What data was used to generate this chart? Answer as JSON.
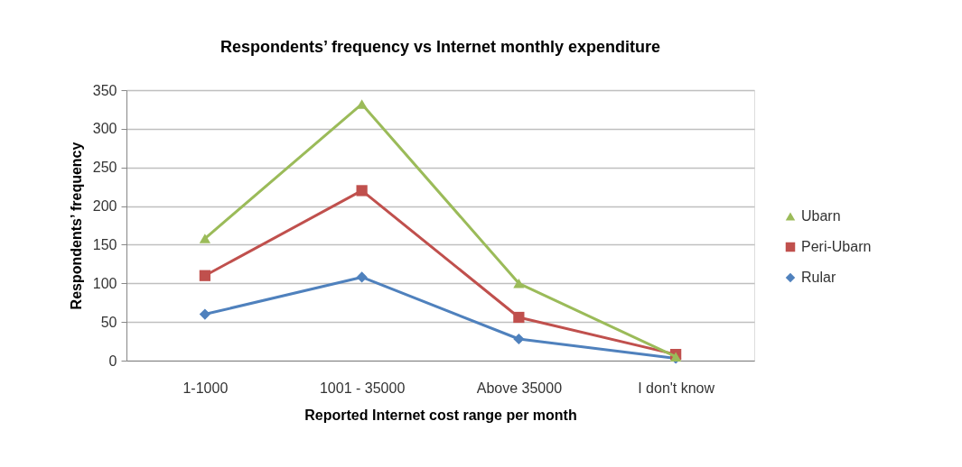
{
  "chart_data": {
    "type": "line",
    "title": "Respondents’ frequency vs Internet monthly expenditure",
    "xlabel": "Reported Internet cost range per month",
    "ylabel": "Respondents’ frequency",
    "categories": [
      "1-1000",
      "1001 - 35000",
      "Above 35000",
      "I don't know"
    ],
    "series": [
      {
        "name": "Ubarn",
        "color": "#9bbb59",
        "marker": "triangle",
        "values": [
          158,
          332,
          100,
          5
        ]
      },
      {
        "name": "Peri-Ubarn",
        "color": "#c0504d",
        "marker": "square",
        "values": [
          110,
          220,
          56,
          8
        ]
      },
      {
        "name": "Rular",
        "color": "#4f81bd",
        "marker": "diamond",
        "values": [
          60,
          108,
          28,
          3
        ]
      }
    ],
    "ylim": [
      0,
      350
    ],
    "yticks": [
      0,
      50,
      100,
      150,
      200,
      250,
      300,
      350
    ],
    "grid": "y",
    "legend": "right",
    "line_style": "solid"
  }
}
